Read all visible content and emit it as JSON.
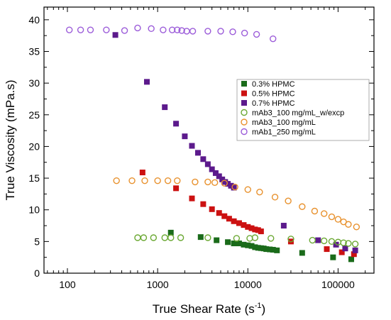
{
  "chart_data": {
    "type": "scatter",
    "xlabel": "True Shear Rate (s",
    "xlabel_sup": "-1",
    "xlabel_end": ")",
    "ylabel": "True Viscosity (mPa.s)",
    "xscale": "log",
    "xlim": [
      55,
      250000
    ],
    "ylim": [
      0,
      42
    ],
    "xticks": [
      100,
      1000,
      10000,
      100000
    ],
    "xtick_labels": [
      "100",
      "1000",
      "10000",
      "100000"
    ],
    "yticks": [
      0,
      5,
      10,
      15,
      20,
      25,
      30,
      35,
      40
    ],
    "ytick_labels": [
      "0",
      "5",
      "10",
      "15",
      "20",
      "25",
      "30",
      "35",
      "40"
    ],
    "legend_position": "right-center",
    "series": [
      {
        "name": "0.3% HPMC",
        "marker": "square-filled",
        "color": "#1a6b1a",
        "points": [
          [
            1400,
            6.4
          ],
          [
            3000,
            5.7
          ],
          [
            4500,
            5.2
          ],
          [
            6000,
            4.9
          ],
          [
            7000,
            4.7
          ],
          [
            8000,
            4.7
          ],
          [
            9000,
            4.5
          ],
          [
            10000,
            4.4
          ],
          [
            11000,
            4.3
          ],
          [
            12000,
            4.1
          ],
          [
            13000,
            4.0
          ],
          [
            14000,
            3.95
          ],
          [
            15000,
            3.9
          ],
          [
            16000,
            3.8
          ],
          [
            17500,
            3.75
          ],
          [
            19000,
            3.7
          ],
          [
            21000,
            3.6
          ],
          [
            40000,
            3.2
          ],
          [
            88000,
            2.5
          ],
          [
            140000,
            2.2
          ]
        ]
      },
      {
        "name": "0.5% HPMC",
        "marker": "square-filled",
        "color": "#cc1111",
        "points": [
          [
            680,
            15.9
          ],
          [
            1600,
            13.4
          ],
          [
            2400,
            11.8
          ],
          [
            3200,
            10.9
          ],
          [
            4000,
            10.1
          ],
          [
            4800,
            9.5
          ],
          [
            5500,
            9.0
          ],
          [
            6200,
            8.6
          ],
          [
            7000,
            8.2
          ],
          [
            8000,
            7.9
          ],
          [
            9000,
            7.6
          ],
          [
            10000,
            7.3
          ],
          [
            11000,
            7.1
          ],
          [
            12000,
            6.9
          ],
          [
            13000,
            6.8
          ],
          [
            14000,
            6.6
          ],
          [
            30000,
            5.0
          ],
          [
            75000,
            3.8
          ],
          [
            110000,
            3.3
          ],
          [
            150000,
            3.0
          ]
        ]
      },
      {
        "name": "0.7% HPMC",
        "marker": "square-filled",
        "color": "#5c1a8c",
        "points": [
          [
            340,
            37.6
          ],
          [
            760,
            30.2
          ],
          [
            1200,
            26.2
          ],
          [
            1600,
            23.6
          ],
          [
            2000,
            21.6
          ],
          [
            2400,
            20.1
          ],
          [
            2800,
            19.0
          ],
          [
            3200,
            18.0
          ],
          [
            3600,
            17.2
          ],
          [
            4000,
            16.4
          ],
          [
            4400,
            15.8
          ],
          [
            4800,
            15.3
          ],
          [
            5200,
            14.8
          ],
          [
            5600,
            14.4
          ],
          [
            6000,
            14.1
          ],
          [
            6500,
            13.8
          ],
          [
            7000,
            13.5
          ],
          [
            25000,
            7.5
          ],
          [
            60000,
            5.2
          ],
          [
            95000,
            4.5
          ],
          [
            120000,
            3.9
          ],
          [
            155000,
            3.6
          ]
        ]
      },
      {
        "name": "mAb3_100 mg/mL_w/excp",
        "marker": "circle-open",
        "color": "#6aa832",
        "points": [
          [
            600,
            5.6
          ],
          [
            700,
            5.6
          ],
          [
            900,
            5.6
          ],
          [
            1200,
            5.6
          ],
          [
            1400,
            5.6
          ],
          [
            1800,
            5.6
          ],
          [
            3600,
            5.6
          ],
          [
            7500,
            5.5
          ],
          [
            10500,
            5.5
          ],
          [
            12000,
            5.6
          ],
          [
            18000,
            5.5
          ],
          [
            30000,
            5.4
          ],
          [
            52000,
            5.2
          ],
          [
            70000,
            5.1
          ],
          [
            85000,
            5.0
          ],
          [
            100000,
            4.9
          ],
          [
            115000,
            4.8
          ],
          [
            130000,
            4.7
          ],
          [
            155000,
            4.6
          ]
        ]
      },
      {
        "name": "mAb3_100 mg/mL",
        "marker": "circle-open",
        "color": "#e8912d",
        "points": [
          [
            350,
            14.6
          ],
          [
            520,
            14.6
          ],
          [
            720,
            14.6
          ],
          [
            1000,
            14.6
          ],
          [
            1300,
            14.6
          ],
          [
            1650,
            14.6
          ],
          [
            2600,
            14.4
          ],
          [
            3600,
            14.4
          ],
          [
            4300,
            14.3
          ],
          [
            5500,
            14.2
          ],
          [
            7200,
            13.6
          ],
          [
            10000,
            13.2
          ],
          [
            13500,
            12.8
          ],
          [
            20000,
            12.0
          ],
          [
            28000,
            11.4
          ],
          [
            40000,
            10.5
          ],
          [
            55000,
            9.8
          ],
          [
            70000,
            9.4
          ],
          [
            85000,
            8.9
          ],
          [
            100000,
            8.5
          ],
          [
            115000,
            8.1
          ],
          [
            130000,
            7.7
          ],
          [
            160000,
            7.3
          ]
        ]
      },
      {
        "name": "mAb1_250 mg/mL",
        "marker": "circle-open",
        "color": "#9b5bd9",
        "points": [
          [
            105,
            38.4
          ],
          [
            140,
            38.4
          ],
          [
            180,
            38.4
          ],
          [
            270,
            38.4
          ],
          [
            430,
            38.3
          ],
          [
            600,
            38.7
          ],
          [
            850,
            38.6
          ],
          [
            1150,
            38.4
          ],
          [
            1450,
            38.4
          ],
          [
            1650,
            38.4
          ],
          [
            1850,
            38.3
          ],
          [
            2100,
            38.2
          ],
          [
            2450,
            38.2
          ],
          [
            3600,
            38.2
          ],
          [
            5000,
            38.2
          ],
          [
            6800,
            38.1
          ],
          [
            9200,
            37.9
          ],
          [
            12500,
            37.7
          ],
          [
            19000,
            37.0
          ]
        ]
      }
    ]
  }
}
